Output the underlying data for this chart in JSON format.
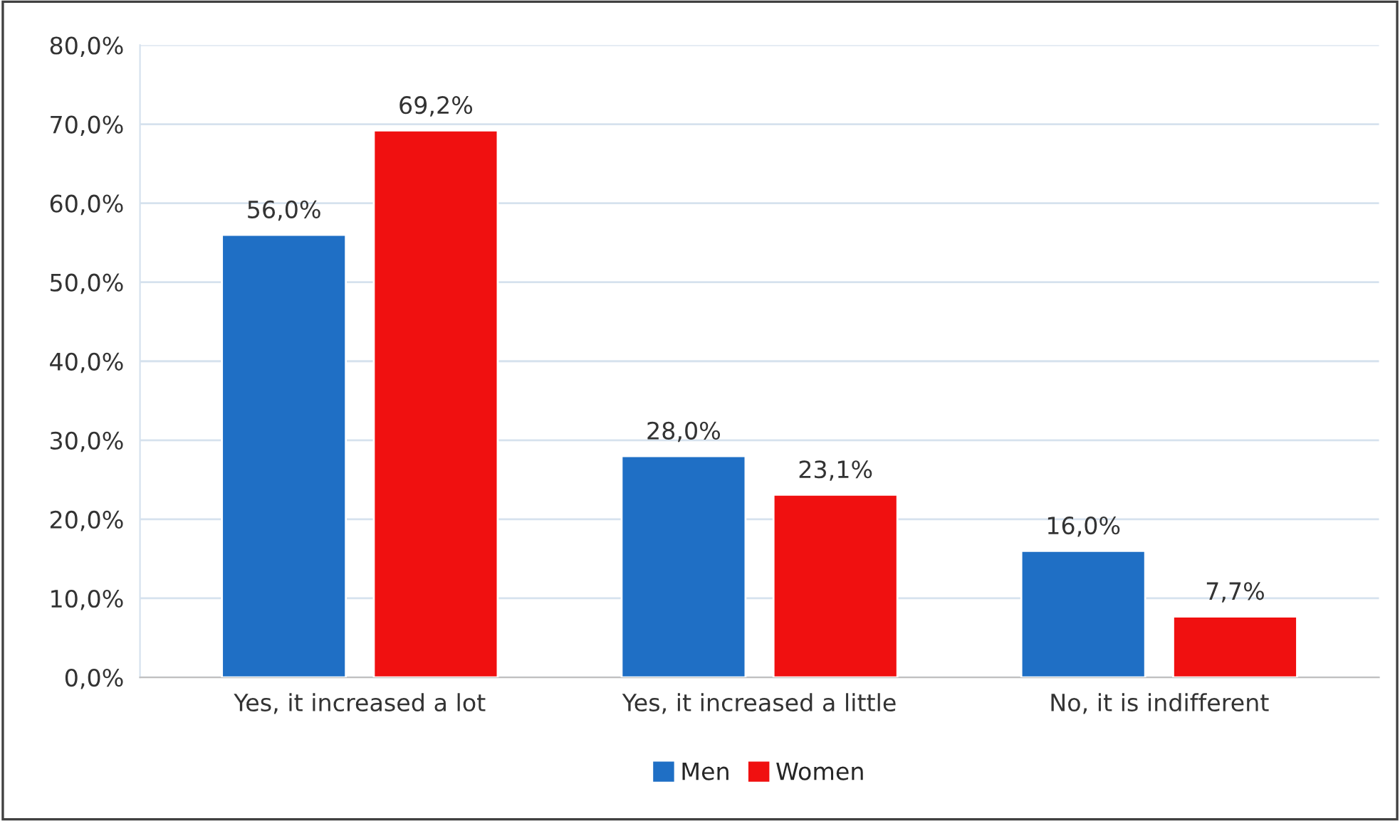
{
  "chart_data": {
    "type": "bar",
    "categories": [
      "Yes, it increased a lot",
      "Yes, it increased a little",
      "No, it is indifferent"
    ],
    "series": [
      {
        "name": "Men",
        "color": "#1f6fc5",
        "values": [
          56.0,
          28.0,
          16.0
        ],
        "value_labels": [
          "56,0%",
          "28,0%",
          "16,0%"
        ]
      },
      {
        "name": "Women",
        "color": "#f01010",
        "values": [
          69.2,
          23.1,
          7.7
        ],
        "value_labels": [
          "69,2%",
          "23,1%",
          "7,7%"
        ]
      }
    ],
    "ylim": [
      0,
      80
    ],
    "yticks": [
      {
        "value": 0,
        "label": "0,0%"
      },
      {
        "value": 10,
        "label": "10,0%"
      },
      {
        "value": 20,
        "label": "20,0%"
      },
      {
        "value": 30,
        "label": "30,0%"
      },
      {
        "value": 40,
        "label": "40,0%"
      },
      {
        "value": 50,
        "label": "50,0%"
      },
      {
        "value": 60,
        "label": "60,0%"
      },
      {
        "value": 70,
        "label": "70,0%"
      },
      {
        "value": 80,
        "label": "80,0%"
      }
    ],
    "grid": "y",
    "legend": "bottom"
  }
}
